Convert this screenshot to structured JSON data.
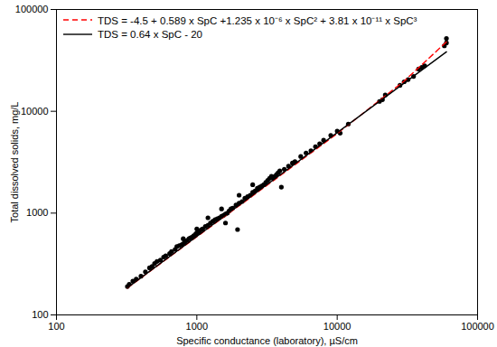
{
  "chart_data": {
    "type": "scatter",
    "x_label": "Specific conductance (laboratory), µS/cm",
    "y_label": "Total dissolved solids, mg/L",
    "log": true,
    "grid": false,
    "legend": "top-left",
    "xlim": [
      100,
      100000
    ],
    "ylim": [
      100,
      100000
    ],
    "xticks": [
      100,
      1000,
      10000,
      100000
    ],
    "yticks": [
      100,
      1000,
      10000,
      100000
    ],
    "series": [
      {
        "type": "scatter",
        "color": "black",
        "marker": "circle",
        "x": [
          320,
          330,
          350,
          370,
          400,
          430,
          460,
          480,
          500,
          520,
          550,
          580,
          600,
          640,
          660,
          700,
          720,
          750,
          780,
          800,
          800,
          820,
          850,
          880,
          900,
          920,
          950,
          980,
          1000,
          1000,
          1020,
          1050,
          1080,
          1100,
          1150,
          1200,
          1200,
          1250,
          1300,
          1350,
          1400,
          1450,
          1500,
          1500,
          1550,
          1600,
          1600,
          1650,
          1700,
          1750,
          1800,
          1900,
          1950,
          2000,
          2000,
          2100,
          2200,
          2300,
          2400,
          2500,
          2500,
          2600,
          2700,
          2800,
          2900,
          3000,
          3100,
          3200,
          3300,
          3400,
          3500,
          3600,
          3700,
          3800,
          3900,
          4000,
          4200,
          4500,
          4800,
          5000,
          5500,
          6000,
          6500,
          7000,
          7500,
          8000,
          9000,
          10000,
          10500,
          12000,
          20000,
          21000,
          22000,
          28000,
          30000,
          32000,
          35000,
          38000,
          40000,
          42000,
          58000,
          60000,
          60000
        ],
        "values": [
          190,
          200,
          215,
          225,
          240,
          265,
          290,
          300,
          320,
          335,
          345,
          370,
          380,
          400,
          420,
          440,
          470,
          480,
          490,
          500,
          560,
          520,
          540,
          560,
          570,
          580,
          600,
          620,
          640,
          700,
          650,
          670,
          690,
          700,
          740,
          760,
          900,
          800,
          830,
          860,
          880,
          900,
          930,
          1100,
          950,
          980,
          800,
          1000,
          1050,
          1100,
          1120,
          1200,
          690,
          1250,
          1500,
          1300,
          1400,
          1450,
          1500,
          1600,
          1900,
          1650,
          1750,
          1800,
          1850,
          1900,
          2000,
          2100,
          2200,
          2300,
          2200,
          2300,
          2400,
          2500,
          2600,
          1800,
          2700,
          2900,
          3100,
          3200,
          3600,
          3900,
          4100,
          4500,
          4800,
          5200,
          5800,
          6400,
          6100,
          7500,
          12500,
          13000,
          14500,
          18000,
          19500,
          20500,
          22000,
          26000,
          27000,
          28000,
          44000,
          47000,
          52000
        ]
      },
      {
        "name": "TDS = -4.5 + 0.589 x SpC +1.235 x 10⁻⁶ x SpC² + 3.81 x 10⁻¹¹ x SpC³",
        "type": "line",
        "color": "red",
        "line_style": "dashed",
        "x": [
          320,
          1000,
          3000,
          10000,
          30000,
          60000
        ],
        "values": [
          184,
          586,
          1778,
          6047,
          19801,
          48010
        ]
      },
      {
        "name": "TDS = 0.64 x SpC - 20",
        "type": "line",
        "color": "black",
        "line_style": "solid",
        "x": [
          320,
          60000
        ],
        "values": [
          185,
          38380
        ]
      }
    ]
  }
}
